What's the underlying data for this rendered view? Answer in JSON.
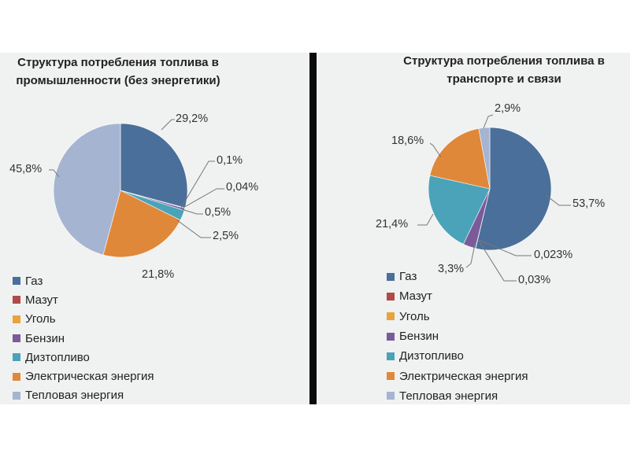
{
  "chart_data": [
    {
      "type": "pie",
      "title": "Структура потребления топлива в промышленности (без энергетики)",
      "categories": [
        "Газ",
        "Мазут",
        "Уголь",
        "Бензин",
        "Дизтопливо",
        "Электрическая энергия",
        "Тепловая энергия"
      ],
      "values": [
        29.2,
        0.1,
        0.04,
        0.5,
        2.5,
        21.8,
        45.8
      ],
      "labels": [
        "29,2%",
        "0,1%",
        "0,04%",
        "0,5%",
        "2,5%",
        "21,8%",
        "45,8%"
      ],
      "legend": "bottom-left"
    },
    {
      "type": "pie",
      "title": "Структура потребления топлива в транспорте и связи",
      "categories": [
        "Газ",
        "Мазут",
        "Уголь",
        "Бензин",
        "Дизтопливо",
        "Электрическая энергия",
        "Тепловая энергия"
      ],
      "values": [
        53.7,
        0.023,
        0.03,
        3.3,
        21.4,
        18.6,
        2.9
      ],
      "labels": [
        "53,7%",
        "0,023%",
        "0,03%",
        "3,3%",
        "21,4%",
        "18,6%",
        "2,9%"
      ],
      "legend": "bottom"
    }
  ],
  "titles": {
    "left": [
      "Структура потребления топлива в",
      "промышленности (без энергетики)"
    ],
    "right": [
      "Структура потребления топлива в",
      "транспорте и связи"
    ]
  },
  "colors": [
    "#4a6f9a",
    "#b04a48",
    "#e8a33c",
    "#7b5a9a",
    "#4aa3b8",
    "#e0883a",
    "#a5b4d0"
  ]
}
